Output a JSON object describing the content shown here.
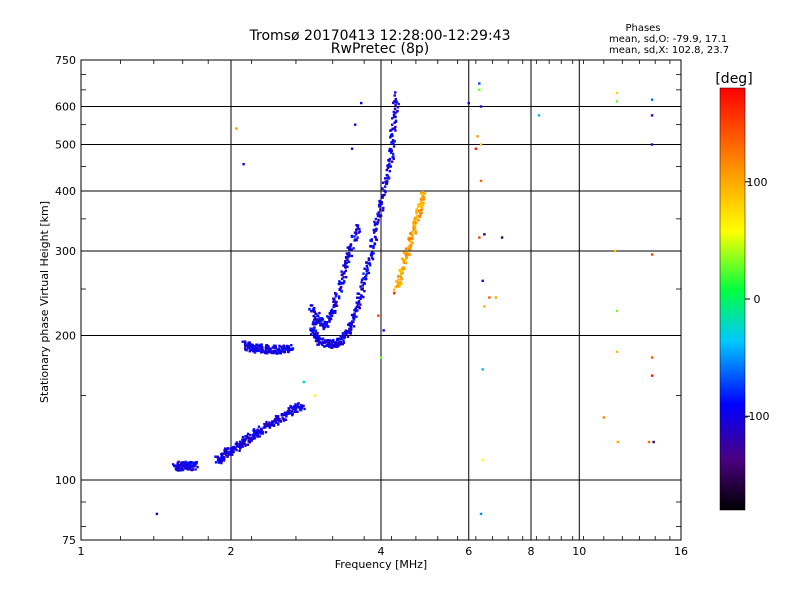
{
  "chart_data": {
    "type": "scatter",
    "title": "Tromsø 20170413 12:28:00-12:29:43",
    "subtitle": "RwPretec (8p)",
    "xlabel": "Frequency [MHz]",
    "ylabel": "Stationary phase Virtual Height [km]",
    "xscale": "log",
    "yscale": "log",
    "xlim": [
      1,
      16
    ],
    "ylim": [
      75,
      750
    ],
    "xticks": [
      1,
      2,
      4,
      6,
      8,
      10,
      16
    ],
    "xtick_labels": [
      "1",
      "2",
      "4",
      "6",
      "8",
      "10",
      "16"
    ],
    "yticks": [
      75,
      100,
      200,
      300,
      400,
      500,
      600,
      750
    ],
    "ytick_labels": [
      "75",
      "100",
      "200",
      "300",
      "400",
      "500",
      "600",
      "750"
    ],
    "grid": true,
    "phases_box": {
      "title": "Phases",
      "line_o": "mean, sd,O: -79.9, 17.1",
      "line_x": "mean, sd,X: 102.8, 23.7"
    },
    "colorbar": {
      "label": "[deg]",
      "range": [
        -180,
        180
      ],
      "ticks": [
        100,
        0,
        -100
      ],
      "tick_labels": [
        "100",
        "0",
        "-100"
      ]
    },
    "series": [
      {
        "name": "O-mode traces",
        "phase_deg": -100,
        "segments": [
          {
            "x": [
              1.55,
              1.58,
              1.62,
              1.66,
              1.7
            ],
            "y": [
              106,
              107,
              107,
              107,
              107
            ]
          },
          {
            "x": [
              1.88,
              1.92,
              1.97,
              2.02,
              2.08,
              2.15,
              2.22,
              2.3,
              2.4,
              2.5,
              2.6,
              2.7,
              2.8
            ],
            "y": [
              110,
              112,
              114,
              116,
              118,
              121,
              124,
              127,
              131,
              134,
              138,
              141,
              143
            ]
          },
          {
            "x": [
              2.13,
              2.18,
              2.25,
              2.32,
              2.4,
              2.48,
              2.56,
              2.65
            ],
            "y": [
              191,
              189,
              188,
              188,
              187,
              187,
              187,
              188
            ]
          },
          {
            "x": [
              2.9,
              2.95,
              3.0,
              3.1,
              3.2,
              3.3,
              3.4,
              3.5,
              3.6,
              3.7,
              3.8,
              3.9,
              4.0,
              4.1,
              4.2,
              4.25,
              4.3
            ],
            "y": [
              210,
              200,
              195,
              192,
              192,
              194,
              200,
              212,
              232,
              260,
              290,
              330,
              370,
              420,
              480,
              560,
              640
            ]
          },
          {
            "x": [
              2.9,
              3.0,
              3.1,
              3.2,
              3.3,
              3.4,
              3.5,
              3.6
            ],
            "y": [
              230,
              215,
              210,
              225,
              250,
              280,
              310,
              340
            ]
          }
        ]
      },
      {
        "name": "X-mode trace",
        "phase_deg": 102,
        "segments": [
          {
            "x": [
              4.3,
              4.4,
              4.5,
              4.6,
              4.7,
              4.8,
              4.9
            ],
            "y": [
              250,
              270,
              295,
              320,
              345,
              370,
              395
            ]
          }
        ]
      },
      {
        "name": "Scattered echoes",
        "points": [
          {
            "x": 1.42,
            "y": 85,
            "phase": -100
          },
          {
            "x": 2.05,
            "y": 540,
            "phase": 110
          },
          {
            "x": 2.12,
            "y": 455,
            "phase": -110
          },
          {
            "x": 2.8,
            "y": 160,
            "phase": -30
          },
          {
            "x": 2.95,
            "y": 150,
            "phase": 60
          },
          {
            "x": 3.65,
            "y": 610,
            "phase": -90
          },
          {
            "x": 3.55,
            "y": 550,
            "phase": -110
          },
          {
            "x": 3.5,
            "y": 490,
            "phase": -110
          },
          {
            "x": 3.95,
            "y": 220,
            "phase": 150
          },
          {
            "x": 4.05,
            "y": 205,
            "phase": -90
          },
          {
            "x": 4.0,
            "y": 180,
            "phase": 30
          },
          {
            "x": 4.25,
            "y": 245,
            "phase": 160
          },
          {
            "x": 6.0,
            "y": 610,
            "phase": -90
          },
          {
            "x": 6.3,
            "y": 670,
            "phase": -70
          },
          {
            "x": 6.3,
            "y": 650,
            "phase": 30
          },
          {
            "x": 6.35,
            "y": 600,
            "phase": -110
          },
          {
            "x": 6.25,
            "y": 520,
            "phase": 110
          },
          {
            "x": 6.35,
            "y": 500,
            "phase": 80
          },
          {
            "x": 6.2,
            "y": 490,
            "phase": 170
          },
          {
            "x": 6.35,
            "y": 420,
            "phase": 130
          },
          {
            "x": 6.3,
            "y": 320,
            "phase": 150
          },
          {
            "x": 6.45,
            "y": 325,
            "phase": -150
          },
          {
            "x": 7.0,
            "y": 320,
            "phase": -150
          },
          {
            "x": 6.4,
            "y": 260,
            "phase": -110
          },
          {
            "x": 6.6,
            "y": 240,
            "phase": 140
          },
          {
            "x": 6.8,
            "y": 240,
            "phase": 100
          },
          {
            "x": 6.45,
            "y": 230,
            "phase": 100
          },
          {
            "x": 6.4,
            "y": 170,
            "phase": -40
          },
          {
            "x": 6.4,
            "y": 110,
            "phase": 60
          },
          {
            "x": 6.35,
            "y": 85,
            "phase": -50
          },
          {
            "x": 8.3,
            "y": 575,
            "phase": -40
          },
          {
            "x": 11.9,
            "y": 640,
            "phase": 80
          },
          {
            "x": 11.9,
            "y": 615,
            "phase": 30
          },
          {
            "x": 11.8,
            "y": 300,
            "phase": 90
          },
          {
            "x": 11.9,
            "y": 225,
            "phase": 30
          },
          {
            "x": 11.9,
            "y": 185,
            "phase": 90
          },
          {
            "x": 11.2,
            "y": 135,
            "phase": 120
          },
          {
            "x": 11.95,
            "y": 120,
            "phase": 100
          },
          {
            "x": 14.0,
            "y": 620,
            "phase": -60
          },
          {
            "x": 14.0,
            "y": 575,
            "phase": -110
          },
          {
            "x": 14.0,
            "y": 500,
            "phase": -110
          },
          {
            "x": 14.0,
            "y": 295,
            "phase": 150
          },
          {
            "x": 14.0,
            "y": 180,
            "phase": 140
          },
          {
            "x": 14.0,
            "y": 165,
            "phase": 170
          },
          {
            "x": 13.8,
            "y": 120,
            "phase": 130
          },
          {
            "x": 14.1,
            "y": 120,
            "phase": -150
          }
        ]
      }
    ]
  }
}
